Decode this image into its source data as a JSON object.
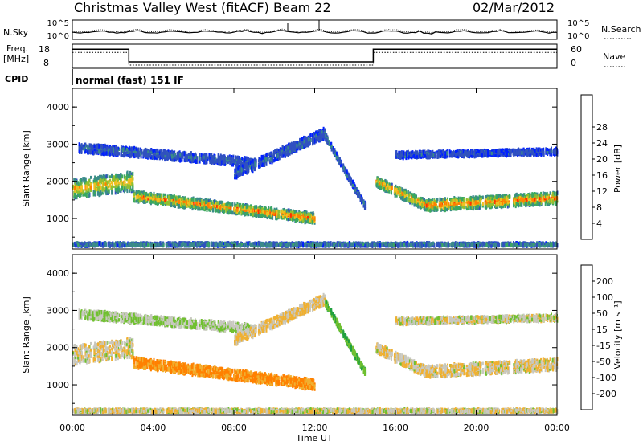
{
  "header": {
    "station": "Christmas Valley West (fitACF)",
    "beam": "Beam 22",
    "date": "02/Mar/2012"
  },
  "top_panels": {
    "nsky_label": "N.Sky",
    "nsearch_label": "N.Search",
    "noise_tick_hi": "10^5",
    "noise_tick_lo": "10^0",
    "freq_label_1": "Freq.",
    "freq_label_2": "[MHz]",
    "freq_ticks": [
      "18",
      "8"
    ],
    "nave_label": "Nave",
    "nave_ticks": [
      "60",
      "0"
    ],
    "cpid_label": "CPID",
    "cpid_text": "normal (fast) 151 IF"
  },
  "axes": {
    "xlabel": "Time UT",
    "x_ticks": [
      "00:00",
      "04:00",
      "08:00",
      "12:00",
      "16:00",
      "20:00",
      "00:00"
    ],
    "ylabel": "Slant Range [km]",
    "y_ticks": [
      "1000",
      "2000",
      "3000",
      "4000"
    ]
  },
  "power_scale": {
    "label": "Power [dB]",
    "ticks": [
      "4",
      "8",
      "12",
      "16",
      "20",
      "24",
      "28"
    ],
    "colors": [
      "#0020ff",
      "#3050c0",
      "#3a8a8a",
      "#3aa860",
      "#90c030",
      "#f0c020",
      "#ff8000",
      "#ff3000",
      "#e00000"
    ]
  },
  "velocity_scale": {
    "label": "Velocity [m s⁻¹]",
    "ticks": [
      "200",
      "100",
      "50",
      "15",
      "-15",
      "-50",
      "-100",
      "-200"
    ],
    "colors": [
      "#1030c0",
      "#3060e0",
      "#20a040",
      "#70c030",
      "#c8c8c0",
      "#f0b030",
      "#ff8000",
      "#ff3000",
      "#e00000"
    ]
  },
  "chart_data": {
    "type": "heatmap",
    "title": "Christmas Valley West (fitACF)",
    "x_range_hours": [
      0,
      24
    ],
    "y_range_km": [
      180,
      4500
    ],
    "xlabel": "Time UT",
    "ylabel": "Slant Range [km]",
    "frequency_mhz": {
      "times": [
        0,
        2.8,
        2.8,
        14.9,
        14.9,
        24
      ],
      "values": [
        17,
        17,
        9.8,
        9.8,
        17,
        17
      ]
    },
    "scatter_bands": [
      {
        "name": "band-f1",
        "t0": 0.0,
        "t1": 3.0,
        "r_start": 1800,
        "r_end": 2000,
        "width": 500,
        "power_db": 22,
        "velocity": -10
      },
      {
        "name": "band-f2",
        "t0": 3.0,
        "t1": 12.0,
        "r_start": 1600,
        "r_end": 1000,
        "width": 260,
        "power_db": 25,
        "velocity": -60
      },
      {
        "name": "band-f3",
        "t0": 15.0,
        "t1": 17.5,
        "r_start": 2000,
        "r_end": 1350,
        "width": 260,
        "power_db": 24,
        "velocity": -10
      },
      {
        "name": "band-f4",
        "t0": 17.5,
        "t1": 24.0,
        "r_start": 1350,
        "r_end": 1550,
        "width": 300,
        "power_db": 26,
        "velocity": -10
      },
      {
        "name": "band-e",
        "t0": 0.0,
        "t1": 24.0,
        "r_start": 300,
        "r_end": 300,
        "width": 70,
        "power_db": 10,
        "velocity": -5
      },
      {
        "name": "band-upper-1",
        "t0": 0.3,
        "t1": 9.0,
        "r_start": 2900,
        "r_end": 2500,
        "width": 220,
        "power_db": 6,
        "velocity": 15
      },
      {
        "name": "band-upper-2",
        "t0": 8.0,
        "t1": 12.5,
        "r_start": 2200,
        "r_end": 3300,
        "width": 260,
        "power_db": 6,
        "velocity": -20
      },
      {
        "name": "band-upper-3",
        "t0": 12.5,
        "t1": 14.5,
        "r_start": 3200,
        "r_end": 1300,
        "width": 150,
        "power_db": 8,
        "velocity": 50
      },
      {
        "name": "band-upper-4",
        "t0": 16.0,
        "t1": 24.0,
        "r_start": 2700,
        "r_end": 2800,
        "width": 150,
        "power_db": 5,
        "velocity": 0
      }
    ]
  }
}
